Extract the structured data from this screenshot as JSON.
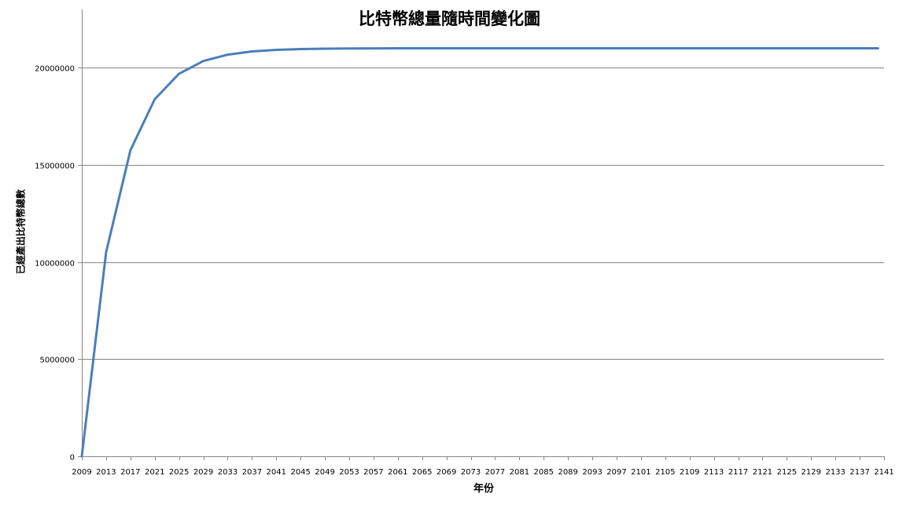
{
  "chart_data": {
    "type": "line",
    "title": "比特幣總量隨時間變化圖",
    "xlabel": "年份",
    "ylabel": "已經產出比特幣總數",
    "x_tick_labels": [
      "2009",
      "2013",
      "2017",
      "2021",
      "2025",
      "2029",
      "2033",
      "2037",
      "2041",
      "2045",
      "2049",
      "2053",
      "2057",
      "2061",
      "2065",
      "2069",
      "2073",
      "2077",
      "2081",
      "2085",
      "2089",
      "2093",
      "2097",
      "2101",
      "2105",
      "2109",
      "2113",
      "2117",
      "2121",
      "2125",
      "2129",
      "2133",
      "2137",
      "2141"
    ],
    "y_tick_labels": [
      "0",
      "5000000",
      "10000000",
      "15000000",
      "20000000"
    ],
    "xlim": [
      2009,
      2141
    ],
    "ylim": [
      0,
      23000000
    ],
    "grid": true,
    "legend": "none",
    "series": [
      {
        "color": "#4A7EBB",
        "x": [
          2009,
          2013,
          2017,
          2021,
          2025,
          2029,
          2033,
          2037,
          2041,
          2045,
          2049,
          2053,
          2057,
          2061,
          2065,
          2069,
          2073,
          2077,
          2081,
          2085,
          2089,
          2093,
          2097,
          2101,
          2105,
          2109,
          2113,
          2117,
          2121,
          2125,
          2129,
          2133,
          2137,
          2140
        ],
        "values": [
          0,
          10500000,
          15750000,
          18375000,
          19687500,
          20343750,
          20671875,
          20835938,
          20917969,
          20958984,
          20979492,
          20989746,
          20994873,
          20997437,
          20998718,
          20999359,
          20999680,
          20999840,
          20999920,
          20999960,
          20999980,
          20999990,
          20999995,
          20999998,
          20999999,
          21000000,
          21000000,
          21000000,
          21000000,
          21000000,
          21000000,
          21000000,
          21000000,
          21000000
        ]
      }
    ]
  }
}
